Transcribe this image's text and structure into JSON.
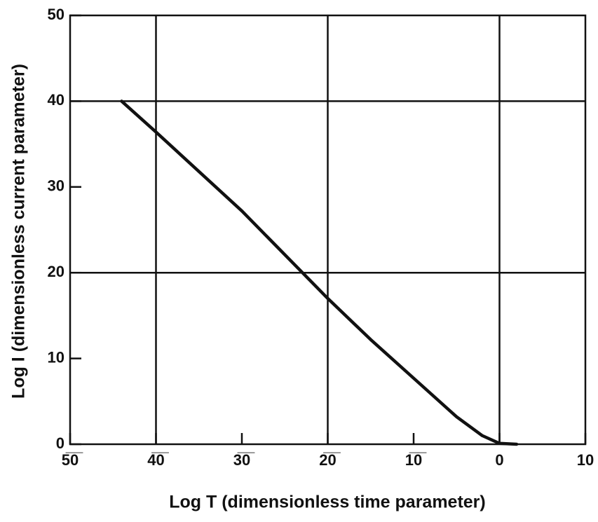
{
  "chart_data": {
    "type": "line",
    "xlabel": "Log T (dimensionless time parameter)",
    "ylabel": "Log I (dimensionless current parameter)",
    "series": [
      {
        "color": "#111111",
        "x": [
          -44,
          -40,
          -30,
          -20,
          -15,
          -10,
          -5,
          -2,
          0,
          2
        ],
        "values": [
          40,
          36.4,
          27.2,
          17,
          12.2,
          7.7,
          3.2,
          1,
          0.1,
          0
        ]
      }
    ],
    "xlim": [
      -50,
      10
    ],
    "ylim": [
      0,
      50
    ],
    "xticks": [
      {
        "value": -50,
        "label": "5̅0̅"
      },
      {
        "value": -40,
        "label": "4̅0̅"
      },
      {
        "value": -30,
        "label": "3̅0̅"
      },
      {
        "value": -20,
        "label": "2̅0̅"
      },
      {
        "value": -10,
        "label": "1̅0̅"
      },
      0,
      10
    ],
    "yticks": [
      0,
      10,
      20,
      30,
      40,
      50
    ],
    "xgrid": [
      -40,
      -20,
      0
    ],
    "ygrid": [
      20,
      40
    ]
  }
}
